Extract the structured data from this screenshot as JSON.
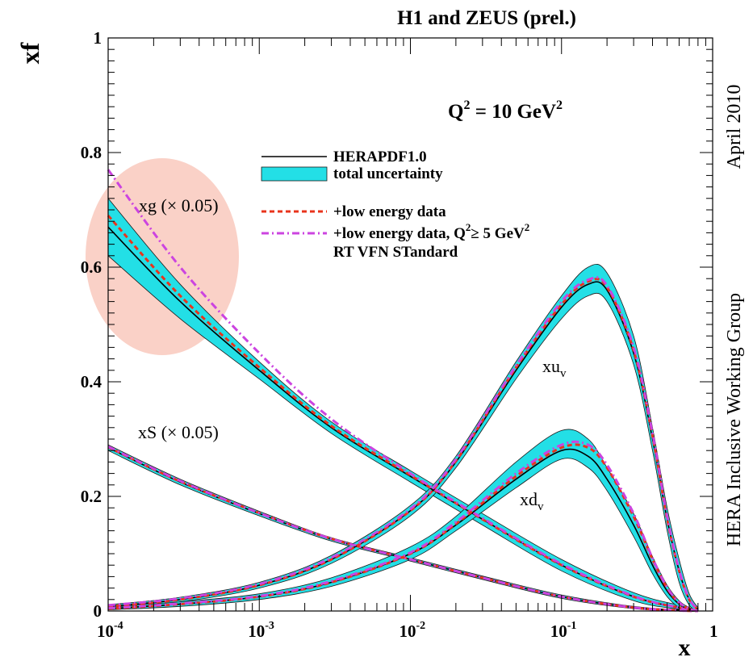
{
  "chart_data": {
    "type": "line",
    "title": "H1 and ZEUS (prel.)",
    "subtitle": "",
    "xlabel": "x",
    "ylabel": "xf",
    "xscale": "log",
    "xlim": [
      0.0001,
      1
    ],
    "ylim": [
      0,
      1
    ],
    "x_tick_labels": [
      "10",
      "10",
      "10",
      "10",
      "1"
    ],
    "x_tick_exponents": [
      "-4",
      "-3",
      "-2",
      "-1",
      ""
    ],
    "y_tick_labels": [
      "0",
      "0.2",
      "0.4",
      "0.6",
      "0.8",
      "1"
    ],
    "grid": false,
    "legend_position": "top-center",
    "legend": [
      {
        "label": "HERAPDF1.0",
        "style": "solid-black"
      },
      {
        "label": "total uncertainty",
        "style": "cyan-band"
      },
      {
        "label": "+low energy data",
        "style": "red-dashed"
      },
      {
        "label": "+low energy data, Q",
        "sup": "2",
        "suffix": "≥ 5 GeV",
        "sup2": "2",
        "style": "magenta-dashdot"
      },
      {
        "label": "RT VFN STandard",
        "style": "none"
      }
    ],
    "annotations": {
      "q2_prefix": "Q",
      "q2_sup": "2",
      "q2_middle": " = 10 GeV",
      "q2_sup2": "2",
      "right_top": "April 2010",
      "right_side": "HERA Inclusive Working Group",
      "xg_label": "xg (× 0.05)",
      "xs_label": "xS (× 0.05)",
      "xuv_base": "xu",
      "xuv_sub": "v",
      "xdv_base": "xd",
      "xdv_sub": "v"
    },
    "highlight": {
      "shape": "ellipse",
      "color": "#f9c9bd",
      "around": "xg (× 0.05)"
    },
    "colors": {
      "band": "#23dfe6",
      "central": "#000000",
      "low_energy": "#e8341c",
      "low_q2": "#cc44e0"
    },
    "series": [
      {
        "name": "xg (× 0.05)",
        "x": [
          0.0001,
          0.0003,
          0.001,
          0.003,
          0.01,
          0.03,
          0.1,
          0.3,
          0.6,
          0.8
        ],
        "central": [
          0.67,
          0.54,
          0.42,
          0.32,
          0.235,
          0.16,
          0.08,
          0.025,
          0.006,
          0.001
        ],
        "band_low": [
          0.62,
          0.51,
          0.405,
          0.31,
          0.225,
          0.15,
          0.07,
          0.018,
          0.003,
          0.0
        ],
        "band_high": [
          0.72,
          0.57,
          0.435,
          0.33,
          0.245,
          0.17,
          0.09,
          0.032,
          0.01,
          0.002
        ],
        "low_energy": [
          0.69,
          0.55,
          0.425,
          0.323,
          0.237,
          0.16,
          0.08,
          0.025,
          0.006,
          0.001
        ],
        "low_q2": [
          0.77,
          0.6,
          0.45,
          0.335,
          0.24,
          0.162,
          0.082,
          0.026,
          0.006,
          0.001
        ]
      },
      {
        "name": "xS (× 0.05)",
        "x": [
          0.0001,
          0.0003,
          0.001,
          0.003,
          0.01,
          0.03,
          0.1,
          0.3,
          0.6,
          0.8
        ],
        "central": [
          0.285,
          0.225,
          0.17,
          0.125,
          0.09,
          0.058,
          0.025,
          0.006,
          0.001,
          0.0
        ],
        "band_low": [
          0.28,
          0.22,
          0.166,
          0.122,
          0.087,
          0.055,
          0.022,
          0.004,
          0.0,
          0.0
        ],
        "band_high": [
          0.29,
          0.23,
          0.174,
          0.128,
          0.093,
          0.061,
          0.028,
          0.008,
          0.002,
          0.0
        ],
        "low_energy": [
          0.286,
          0.226,
          0.171,
          0.126,
          0.09,
          0.058,
          0.025,
          0.006,
          0.001,
          0.0
        ],
        "low_q2": [
          0.287,
          0.227,
          0.171,
          0.126,
          0.09,
          0.058,
          0.025,
          0.006,
          0.001,
          0.0
        ]
      },
      {
        "name": "xuᵥ",
        "x": [
          0.0001,
          0.0003,
          0.001,
          0.003,
          0.01,
          0.02,
          0.05,
          0.1,
          0.15,
          0.2,
          0.3,
          0.4,
          0.5,
          0.6,
          0.7,
          0.8
        ],
        "central": [
          0.008,
          0.02,
          0.045,
          0.09,
          0.175,
          0.26,
          0.42,
          0.53,
          0.57,
          0.56,
          0.45,
          0.3,
          0.16,
          0.07,
          0.02,
          0.003
        ],
        "band_low": [
          0.005,
          0.016,
          0.04,
          0.083,
          0.166,
          0.25,
          0.405,
          0.51,
          0.55,
          0.54,
          0.43,
          0.28,
          0.14,
          0.05,
          0.01,
          0.0
        ],
        "band_high": [
          0.011,
          0.024,
          0.05,
          0.097,
          0.184,
          0.27,
          0.435,
          0.55,
          0.6,
          0.59,
          0.48,
          0.32,
          0.18,
          0.09,
          0.03,
          0.006
        ],
        "low_energy": [
          0.008,
          0.02,
          0.045,
          0.09,
          0.175,
          0.262,
          0.425,
          0.535,
          0.575,
          0.565,
          0.455,
          0.305,
          0.16,
          0.07,
          0.02,
          0.003
        ],
        "low_q2": [
          0.01,
          0.022,
          0.047,
          0.093,
          0.178,
          0.265,
          0.428,
          0.54,
          0.578,
          0.568,
          0.46,
          0.31,
          0.165,
          0.072,
          0.021,
          0.003
        ]
      },
      {
        "name": "xdᵥ",
        "x": [
          0.0001,
          0.0003,
          0.001,
          0.003,
          0.01,
          0.02,
          0.05,
          0.1,
          0.15,
          0.2,
          0.3,
          0.4,
          0.5,
          0.6,
          0.7,
          0.8
        ],
        "central": [
          0.004,
          0.012,
          0.025,
          0.05,
          0.1,
          0.15,
          0.23,
          0.28,
          0.27,
          0.23,
          0.15,
          0.08,
          0.035,
          0.012,
          0.003,
          0.0
        ],
        "band_low": [
          0.002,
          0.008,
          0.02,
          0.043,
          0.09,
          0.14,
          0.215,
          0.265,
          0.25,
          0.21,
          0.13,
          0.065,
          0.025,
          0.006,
          0.0,
          0.0
        ],
        "band_high": [
          0.006,
          0.016,
          0.03,
          0.058,
          0.112,
          0.165,
          0.26,
          0.315,
          0.3,
          0.25,
          0.17,
          0.095,
          0.045,
          0.018,
          0.006,
          0.0
        ],
        "low_energy": [
          0.004,
          0.012,
          0.025,
          0.05,
          0.1,
          0.152,
          0.235,
          0.285,
          0.285,
          0.25,
          0.165,
          0.09,
          0.04,
          0.014,
          0.004,
          0.0
        ],
        "low_q2": [
          0.005,
          0.013,
          0.026,
          0.052,
          0.102,
          0.155,
          0.24,
          0.29,
          0.29,
          0.255,
          0.17,
          0.092,
          0.041,
          0.015,
          0.004,
          0.0
        ]
      }
    ]
  }
}
